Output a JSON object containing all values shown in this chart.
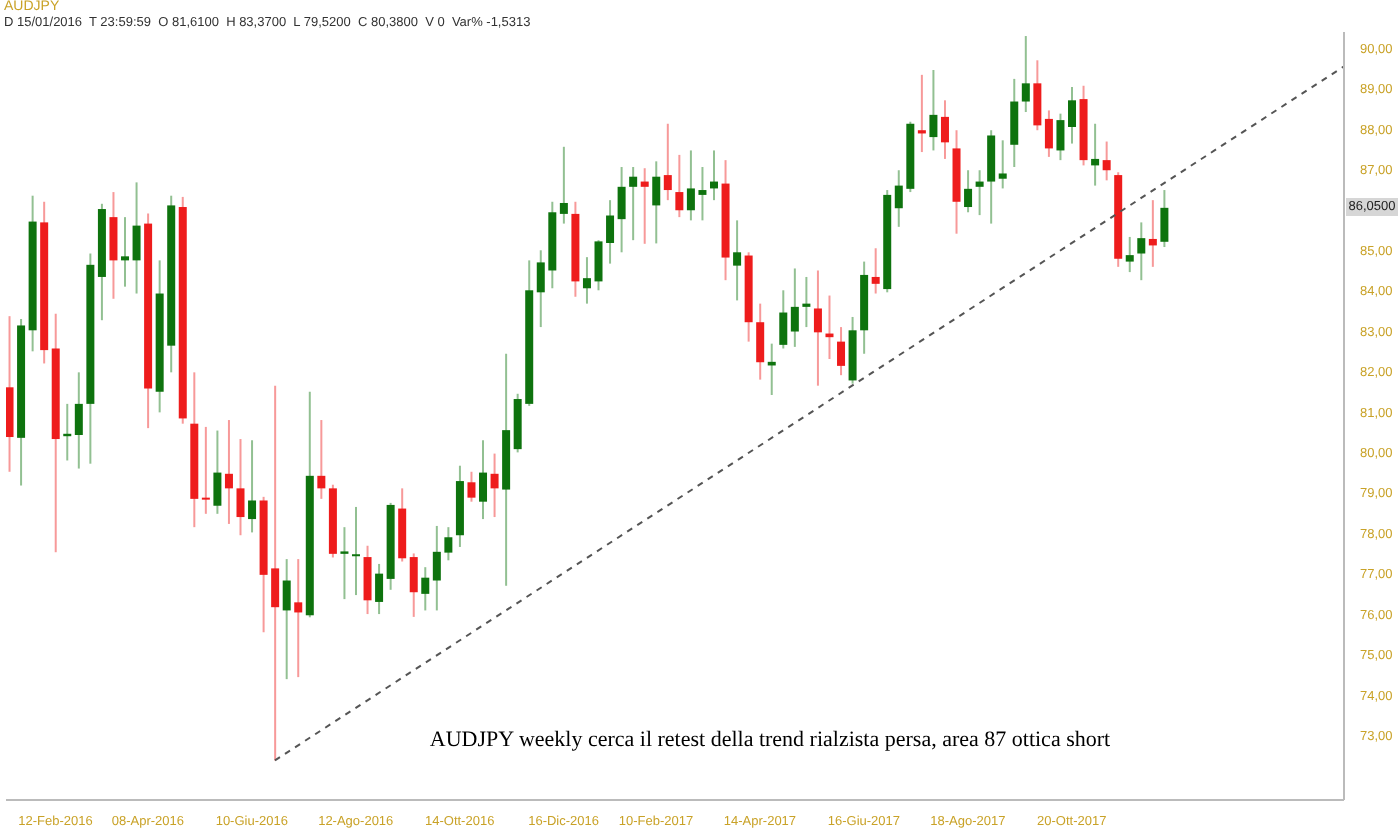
{
  "chart_data": {
    "type": "candlestick",
    "title": "AUDJPY",
    "subtitle": "D 15/01/2016  T 23:59:59  O 81,6100  H 83,3700  L 79,5200  C 80,3800  V 0  Var% -1,5313",
    "x": [
      "2016-01-15",
      "2016-01-22",
      "2016-01-29",
      "2016-02-05",
      "2016-02-12",
      "2016-02-19",
      "2016-02-26",
      "2016-03-04",
      "2016-03-11",
      "2016-03-18",
      "2016-03-25",
      "2016-04-01",
      "2016-04-08",
      "2016-04-15",
      "2016-04-22",
      "2016-04-29",
      "2016-05-06",
      "2016-05-13",
      "2016-05-20",
      "2016-05-27",
      "2016-06-03",
      "2016-06-10",
      "2016-06-17",
      "2016-06-24",
      "2016-07-01",
      "2016-07-08",
      "2016-07-15",
      "2016-07-22",
      "2016-07-29",
      "2016-08-05",
      "2016-08-12",
      "2016-08-19",
      "2016-08-26",
      "2016-09-02",
      "2016-09-09",
      "2016-09-16",
      "2016-09-23",
      "2016-09-30",
      "2016-10-07",
      "2016-10-14",
      "2016-10-21",
      "2016-10-28",
      "2016-11-04",
      "2016-11-11",
      "2016-11-18",
      "2016-11-25",
      "2016-12-02",
      "2016-12-09",
      "2016-12-16",
      "2016-12-23",
      "2016-12-30",
      "2017-01-06",
      "2017-01-13",
      "2017-01-20",
      "2017-01-27",
      "2017-02-03",
      "2017-02-10",
      "2017-02-17",
      "2017-02-24",
      "2017-03-03",
      "2017-03-10",
      "2017-03-17",
      "2017-03-24",
      "2017-03-31",
      "2017-04-07",
      "2017-04-14",
      "2017-04-21",
      "2017-04-28",
      "2017-05-05",
      "2017-05-12",
      "2017-05-19",
      "2017-05-26",
      "2017-06-02",
      "2017-06-09",
      "2017-06-16",
      "2017-06-23",
      "2017-06-30",
      "2017-07-07",
      "2017-07-14",
      "2017-07-21",
      "2017-07-28",
      "2017-08-04",
      "2017-08-11",
      "2017-08-18",
      "2017-08-25",
      "2017-09-01",
      "2017-09-08",
      "2017-09-15",
      "2017-09-22",
      "2017-09-29",
      "2017-10-06",
      "2017-10-13",
      "2017-10-20",
      "2017-10-27",
      "2017-11-03",
      "2017-11-10",
      "2017-11-17",
      "2017-11-24",
      "2017-12-01",
      "2017-12-08",
      "2017-12-15"
    ],
    "ohlc": [
      [
        81.61,
        83.37,
        79.52,
        80.38
      ],
      [
        80.36,
        83.3,
        79.18,
        83.14
      ],
      [
        83.02,
        86.35,
        82.5,
        85.71
      ],
      [
        85.69,
        86.2,
        82.2,
        82.53
      ],
      [
        82.57,
        83.43,
        77.53,
        80.33
      ],
      [
        80.4,
        81.2,
        79.8,
        80.46
      ],
      [
        80.43,
        81.98,
        79.6,
        81.2
      ],
      [
        81.2,
        84.92,
        79.72,
        84.64
      ],
      [
        84.34,
        86.15,
        83.27,
        86.02
      ],
      [
        85.82,
        86.44,
        83.8,
        84.75
      ],
      [
        84.75,
        85.82,
        84.1,
        84.85
      ],
      [
        84.75,
        86.68,
        83.93,
        85.61
      ],
      [
        85.66,
        85.91,
        80.6,
        81.58
      ],
      [
        81.5,
        84.75,
        80.99,
        83.93
      ],
      [
        82.64,
        86.35,
        81.98,
        86.11
      ],
      [
        86.07,
        86.32,
        80.71,
        80.84
      ],
      [
        80.71,
        81.98,
        78.15,
        78.85
      ],
      [
        78.88,
        80.63,
        78.48,
        78.85
      ],
      [
        78.68,
        80.54,
        78.48,
        79.5
      ],
      [
        79.47,
        80.8,
        78.23,
        79.11
      ],
      [
        79.11,
        80.33,
        77.95,
        78.4
      ],
      [
        78.35,
        80.3,
        78.02,
        78.81
      ],
      [
        78.81,
        78.9,
        75.55,
        76.97
      ],
      [
        77.13,
        81.65,
        72.38,
        76.17
      ],
      [
        76.09,
        77.36,
        74.39,
        76.83
      ],
      [
        76.29,
        77.36,
        74.44,
        76.04
      ],
      [
        75.97,
        81.5,
        75.92,
        79.42
      ],
      [
        79.42,
        80.8,
        78.85,
        79.11
      ],
      [
        79.11,
        79.2,
        77.4,
        77.49
      ],
      [
        77.49,
        78.15,
        76.37,
        77.55
      ],
      [
        77.45,
        78.65,
        76.47,
        77.48
      ],
      [
        77.41,
        77.69,
        76.0,
        76.34
      ],
      [
        76.3,
        77.24,
        76.0,
        77.0
      ],
      [
        76.87,
        78.75,
        76.6,
        78.7
      ],
      [
        78.61,
        79.11,
        77.3,
        77.38
      ],
      [
        77.41,
        77.5,
        75.93,
        76.54
      ],
      [
        76.5,
        77.16,
        76.09,
        76.9
      ],
      [
        76.83,
        78.18,
        76.09,
        77.54
      ],
      [
        77.52,
        78.15,
        77.33,
        77.9
      ],
      [
        77.95,
        79.67,
        77.66,
        79.29
      ],
      [
        79.26,
        79.52,
        78.78,
        78.88
      ],
      [
        78.78,
        80.3,
        78.35,
        79.5
      ],
      [
        79.47,
        79.97,
        78.4,
        79.11
      ],
      [
        79.08,
        82.44,
        76.7,
        80.55
      ],
      [
        80.08,
        81.45,
        80.0,
        81.32
      ],
      [
        81.2,
        84.75,
        81.15,
        84.01
      ],
      [
        83.96,
        85.0,
        83.1,
        84.7
      ],
      [
        84.5,
        86.2,
        84.06,
        85.94
      ],
      [
        85.9,
        87.56,
        85.66,
        86.17
      ],
      [
        85.9,
        86.2,
        83.85,
        84.23
      ],
      [
        84.06,
        84.83,
        83.68,
        84.31
      ],
      [
        84.23,
        85.25,
        84.01,
        85.22
      ],
      [
        85.18,
        86.24,
        84.67,
        85.86
      ],
      [
        85.77,
        87.06,
        84.95,
        86.57
      ],
      [
        86.57,
        87.06,
        85.25,
        86.82
      ],
      [
        86.7,
        87.03,
        85.16,
        86.57
      ],
      [
        86.11,
        87.2,
        85.17,
        86.82
      ],
      [
        86.86,
        88.13,
        86.24,
        86.49
      ],
      [
        86.44,
        87.36,
        85.82,
        85.99
      ],
      [
        85.99,
        87.47,
        85.74,
        86.53
      ],
      [
        86.37,
        87.06,
        85.74,
        86.49
      ],
      [
        86.53,
        87.47,
        86.24,
        86.7
      ],
      [
        86.65,
        87.23,
        84.26,
        84.82
      ],
      [
        84.62,
        85.74,
        83.76,
        84.95
      ],
      [
        84.87,
        84.95,
        82.74,
        83.22
      ],
      [
        83.22,
        83.68,
        81.8,
        82.23
      ],
      [
        82.15,
        82.69,
        81.42,
        82.24
      ],
      [
        82.66,
        84.01,
        82.57,
        83.46
      ],
      [
        82.99,
        84.55,
        82.61,
        83.6
      ],
      [
        83.6,
        84.34,
        83.1,
        83.68
      ],
      [
        83.56,
        84.5,
        81.65,
        82.97
      ],
      [
        82.94,
        83.88,
        82.31,
        82.85
      ],
      [
        82.74,
        83.1,
        81.91,
        82.14
      ],
      [
        81.78,
        83.35,
        81.7,
        83.02
      ],
      [
        83.02,
        84.72,
        82.44,
        84.39
      ],
      [
        84.34,
        85.05,
        83.93,
        84.17
      ],
      [
        84.04,
        86.49,
        83.96,
        86.37
      ],
      [
        86.04,
        86.98,
        85.58,
        86.6
      ],
      [
        86.52,
        88.18,
        86.44,
        88.13
      ],
      [
        87.97,
        89.34,
        87.43,
        87.89
      ],
      [
        87.8,
        89.46,
        87.47,
        88.35
      ],
      [
        88.3,
        88.71,
        87.26,
        87.67
      ],
      [
        87.52,
        87.97,
        85.41,
        86.2
      ],
      [
        86.07,
        86.98,
        85.94,
        86.52
      ],
      [
        86.57,
        86.98,
        85.87,
        86.7
      ],
      [
        86.7,
        87.97,
        85.66,
        87.84
      ],
      [
        86.77,
        87.72,
        86.53,
        86.9
      ],
      [
        87.61,
        89.24,
        87.06,
        88.68
      ],
      [
        88.68,
        90.3,
        88.42,
        89.13
      ],
      [
        89.13,
        89.7,
        87.97,
        88.09
      ],
      [
        88.25,
        88.46,
        87.31,
        87.52
      ],
      [
        87.47,
        88.38,
        87.23,
        88.22
      ],
      [
        88.05,
        89.04,
        87.64,
        88.71
      ],
      [
        88.74,
        89.07,
        87.1,
        87.23
      ],
      [
        87.1,
        88.13,
        86.6,
        87.26
      ],
      [
        87.23,
        87.69,
        86.73,
        86.98
      ],
      [
        86.86,
        86.93,
        84.59,
        84.79
      ],
      [
        84.72,
        85.33,
        84.46,
        84.88
      ],
      [
        84.92,
        85.69,
        84.26,
        85.3
      ],
      [
        85.28,
        86.24,
        84.59,
        85.12
      ],
      [
        85.21,
        86.49,
        85.08,
        86.05
      ]
    ],
    "colors": [
      "#ee1c1c",
      "#0e730e",
      "#0e730e",
      "#ee1c1c",
      "#ee1c1c",
      "#0e730e",
      "#0e730e",
      "#0e730e",
      "#0e730e",
      "#ee1c1c",
      "#0e730e",
      "#0e730e",
      "#ee1c1c",
      "#0e730e",
      "#0e730e",
      "#ee1c1c",
      "#ee1c1c",
      "#ee1c1c",
      "#0e730e",
      "#ee1c1c",
      "#ee1c1c",
      "#0e730e",
      "#ee1c1c",
      "#ee1c1c",
      "#0e730e",
      "#ee1c1c",
      "#0e730e",
      "#ee1c1c",
      "#ee1c1c",
      "#0e730e",
      "#0e730e",
      "#ee1c1c",
      "#0e730e",
      "#0e730e",
      "#ee1c1c",
      "#ee1c1c",
      "#0e730e",
      "#0e730e",
      "#0e730e",
      "#0e730e",
      "#ee1c1c",
      "#0e730e",
      "#ee1c1c",
      "#0e730e",
      "#0e730e",
      "#0e730e",
      "#0e730e",
      "#0e730e",
      "#0e730e",
      "#ee1c1c",
      "#0e730e",
      "#0e730e",
      "#0e730e",
      "#0e730e",
      "#0e730e",
      "#ee1c1c",
      "#0e730e",
      "#ee1c1c",
      "#ee1c1c",
      "#0e730e",
      "#0e730e",
      "#0e730e",
      "#ee1c1c",
      "#0e730e",
      "#ee1c1c",
      "#ee1c1c",
      "#0e730e",
      "#0e730e",
      "#0e730e",
      "#0e730e",
      "#ee1c1c",
      "#ee1c1c",
      "#ee1c1c",
      "#0e730e",
      "#0e730e",
      "#ee1c1c",
      "#0e730e",
      "#0e730e",
      "#0e730e",
      "#ee1c1c",
      "#0e730e",
      "#ee1c1c",
      "#ee1c1c",
      "#0e730e",
      "#0e730e",
      "#0e730e",
      "#0e730e",
      "#0e730e",
      "#0e730e",
      "#ee1c1c",
      "#ee1c1c",
      "#0e730e",
      "#0e730e",
      "#ee1c1c",
      "#0e730e",
      "#ee1c1c",
      "#ee1c1c",
      "#0e730e",
      "#0e730e",
      "#ee1c1c",
      "#0e730e"
    ],
    "series": [
      {
        "type": "line",
        "x": [
          "2016-06-24",
          "2018-04-03"
        ],
        "values": [
          72.38,
          89.55
        ],
        "color": "#555555",
        "line_style": "dashed"
      }
    ],
    "xlim": [
      "2016-01-13",
      "2018-04-03"
    ],
    "xticks": [
      {
        "value": "2016-02-12",
        "label": "12-Feb-2016"
      },
      {
        "value": "2016-04-08",
        "label": "08-Apr-2016"
      },
      {
        "value": "2016-06-10",
        "label": "10-Giu-2016"
      },
      {
        "value": "2016-08-12",
        "label": "12-Ago-2016"
      },
      {
        "value": "2016-10-14",
        "label": "14-Ott-2016"
      },
      {
        "value": "2016-12-16",
        "label": "16-Dic-2016"
      },
      {
        "value": "2017-02-10",
        "label": "10-Feb-2017"
      },
      {
        "value": "2017-04-14",
        "label": "14-Apr-2017"
      },
      {
        "value": "2017-06-16",
        "label": "16-Giu-2017"
      },
      {
        "value": "2017-08-18",
        "label": "18-Ago-2017"
      },
      {
        "value": "2017-10-20",
        "label": "20-Ott-2017"
      }
    ],
    "ylim": [
      71.4,
      90.4
    ],
    "yticks": [
      {
        "value": 73,
        "label": "73,00"
      },
      {
        "value": 74,
        "label": "74,00"
      },
      {
        "value": 75,
        "label": "75,00"
      },
      {
        "value": 76,
        "label": "76,00"
      },
      {
        "value": 77,
        "label": "77,00"
      },
      {
        "value": 78,
        "label": "78,00"
      },
      {
        "value": 79,
        "label": "79,00"
      },
      {
        "value": 80,
        "label": "80,00"
      },
      {
        "value": 81,
        "label": "81,00"
      },
      {
        "value": 82,
        "label": "82,00"
      },
      {
        "value": 83,
        "label": "83,00"
      },
      {
        "value": 84,
        "label": "84,00"
      },
      {
        "value": 85,
        "label": "85,00"
      },
      {
        "value": 87,
        "label": "87,00"
      },
      {
        "value": 88,
        "label": "88,00"
      },
      {
        "value": 89,
        "label": "89,00"
      },
      {
        "value": 90,
        "label": "90,00"
      }
    ],
    "annotations": [
      "AUDJPY weekly cerca il retest della trend rialzista persa, area 87 ottica short",
      {
        "text": "86,0500",
        "y": 86.05
      }
    ]
  }
}
